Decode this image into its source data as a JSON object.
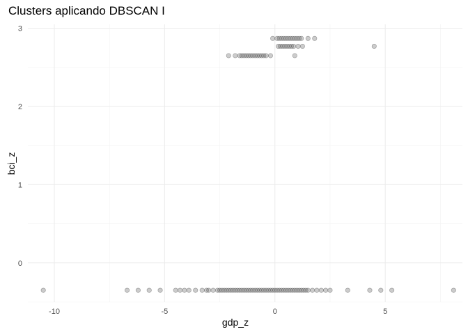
{
  "chart_data": {
    "type": "scatter",
    "title": "Clusters aplicando DBSCAN I",
    "xlabel": "gdp_z",
    "ylabel": "bci_z",
    "xlim": [
      -11.2,
      8.5
    ],
    "ylim": [
      -0.5,
      3.05
    ],
    "x_ticks": [
      -10,
      -5,
      0,
      5
    ],
    "y_ticks": [
      0,
      1,
      2,
      3
    ],
    "grid": true,
    "point_color": "#555555",
    "point_opacity": 0.3,
    "series": [
      {
        "x": [
          -10.5,
          -6.7,
          -6.2,
          -5.7,
          -5.2,
          -4.5,
          -4.3,
          -4.1,
          -3.9,
          -3.6,
          -3.3,
          -3.1,
          -3.0,
          -2.8,
          -2.6,
          -2.5,
          -2.4,
          -2.3,
          -2.2,
          -2.1,
          -2.0,
          -1.9,
          -1.8,
          -1.7,
          -1.6,
          -1.5,
          -1.4,
          -1.3,
          -1.2,
          -1.1,
          -1.0,
          -0.9,
          -0.8,
          -0.7,
          -0.6,
          -0.5,
          -0.4,
          -0.3,
          -0.2,
          -0.1,
          0.0,
          0.1,
          0.2,
          0.3,
          0.4,
          0.5,
          0.6,
          0.7,
          0.8,
          0.9,
          1.0,
          1.1,
          1.2,
          1.3,
          1.4,
          1.5,
          1.7,
          1.9,
          2.1,
          2.3,
          2.5,
          3.3,
          4.3,
          4.8,
          5.3,
          8.1
        ],
        "y": [
          -0.35,
          -0.35,
          -0.35,
          -0.35,
          -0.35,
          -0.35,
          -0.35,
          -0.35,
          -0.35,
          -0.35,
          -0.35,
          -0.35,
          -0.35,
          -0.35,
          -0.35,
          -0.35,
          -0.35,
          -0.35,
          -0.35,
          -0.35,
          -0.35,
          -0.35,
          -0.35,
          -0.35,
          -0.35,
          -0.35,
          -0.35,
          -0.35,
          -0.35,
          -0.35,
          -0.35,
          -0.35,
          -0.35,
          -0.35,
          -0.35,
          -0.35,
          -0.35,
          -0.35,
          -0.35,
          -0.35,
          -0.35,
          -0.35,
          -0.35,
          -0.35,
          -0.35,
          -0.35,
          -0.35,
          -0.35,
          -0.35,
          -0.35,
          -0.35,
          -0.35,
          -0.35,
          -0.35,
          -0.35,
          -0.35,
          -0.35,
          -0.35,
          -0.35,
          -0.35,
          -0.35,
          -0.35,
          -0.35,
          -0.35,
          -0.35,
          -0.35
        ]
      },
      {
        "x": [
          -0.1,
          0.1,
          0.2,
          0.3,
          0.4,
          0.5,
          0.6,
          0.7,
          0.8,
          0.9,
          1.0,
          1.1,
          1.2,
          1.5,
          1.8,
          0.15,
          0.25,
          0.35,
          0.45,
          0.55,
          0.65,
          0.75,
          0.85,
          1.05,
          1.25,
          4.5,
          -2.1,
          -1.8,
          -1.6,
          -1.5,
          -1.4,
          -1.3,
          -1.2,
          -1.1,
          -1.0,
          -0.9,
          -0.8,
          -0.7,
          -0.6,
          -0.5,
          -0.4,
          -0.2,
          0.9
        ],
        "y": [
          2.87,
          2.87,
          2.87,
          2.87,
          2.87,
          2.87,
          2.87,
          2.87,
          2.87,
          2.87,
          2.87,
          2.87,
          2.87,
          2.87,
          2.87,
          2.77,
          2.77,
          2.77,
          2.77,
          2.77,
          2.77,
          2.77,
          2.77,
          2.77,
          2.77,
          2.77,
          2.65,
          2.65,
          2.65,
          2.65,
          2.65,
          2.65,
          2.65,
          2.65,
          2.65,
          2.65,
          2.65,
          2.65,
          2.65,
          2.65,
          2.65,
          2.65,
          2.65
        ]
      }
    ]
  }
}
